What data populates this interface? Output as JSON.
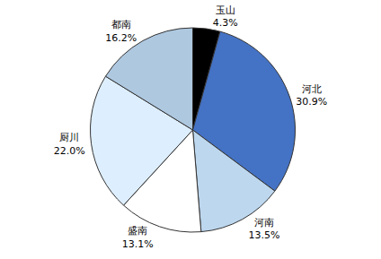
{
  "chart_data": {
    "type": "pie",
    "categories": [
      "玉山",
      "河北",
      "河南",
      "盛南",
      "厨川",
      "都南"
    ],
    "values": [
      4.3,
      30.9,
      13.5,
      13.1,
      22.0,
      16.2
    ],
    "value_labels": [
      "4.3%",
      "30.9%",
      "13.5%",
      "13.1%",
      "22.0%",
      "16.2%"
    ],
    "colors": [
      "#000000",
      "#4472C4",
      "#BDD7EE",
      "#FFFFFF",
      "#DDEEFF",
      "#AEC8E0"
    ],
    "data_labels": true
  }
}
